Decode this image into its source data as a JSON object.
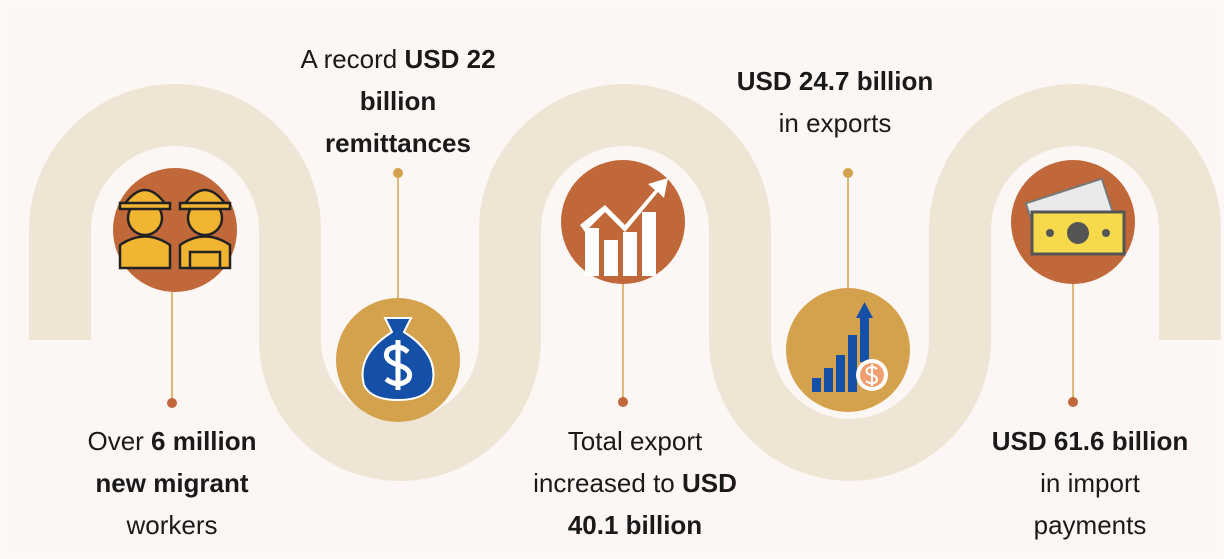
{
  "items": [
    {
      "lines": [
        [
          {
            "text": "Over ",
            "bold": false
          },
          {
            "text": "6 million",
            "bold": true
          }
        ],
        [
          {
            "text": "new migrant",
            "bold": true
          }
        ],
        [
          {
            "text": "workers",
            "bold": false
          }
        ]
      ]
    },
    {
      "lines": [
        [
          {
            "text": "A record ",
            "bold": false
          },
          {
            "text": "USD 22",
            "bold": true
          }
        ],
        [
          {
            "text": "billion",
            "bold": true
          }
        ],
        [
          {
            "text": "remittances",
            "bold": true
          }
        ]
      ]
    },
    {
      "lines": [
        [
          {
            "text": "Total export",
            "bold": false
          }
        ],
        [
          {
            "text": "increased to ",
            "bold": false
          },
          {
            "text": "USD",
            "bold": true
          }
        ],
        [
          {
            "text": "40.1 billion",
            "bold": true
          }
        ]
      ]
    },
    {
      "lines": [
        [
          {
            "text": "USD 24.7 billion",
            "bold": true
          }
        ],
        [
          {
            "text": "in exports",
            "bold": false
          }
        ]
      ]
    },
    {
      "lines": [
        [
          {
            "text": "USD 61.6 billion",
            "bold": true
          }
        ],
        [
          {
            "text": "in import",
            "bold": false
          }
        ],
        [
          {
            "text": "payments",
            "bold": false
          }
        ]
      ]
    }
  ]
}
